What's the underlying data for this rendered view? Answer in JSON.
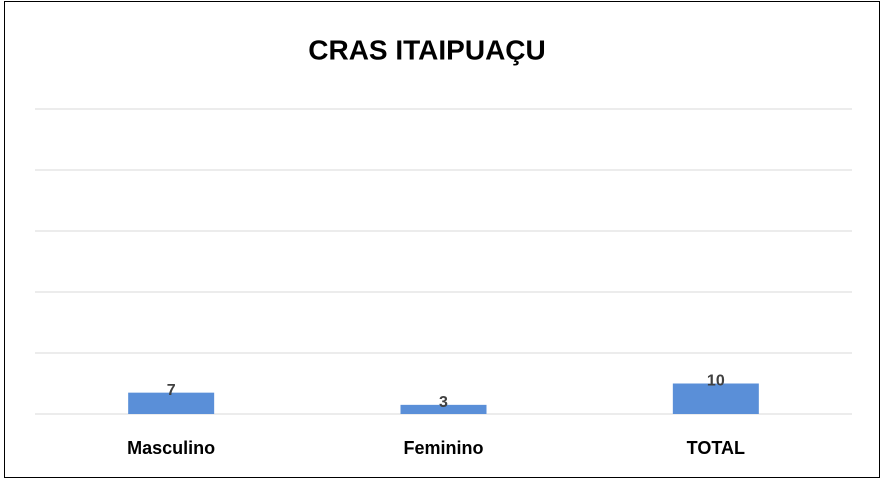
{
  "chart_data": {
    "type": "bar",
    "title": "CRAS ITAIPUAÇU",
    "categories": [
      "Masculino",
      "Feminino",
      "TOTAL"
    ],
    "values": [
      7,
      3,
      10
    ],
    "color": "#5a8fd8",
    "ylim": [
      0,
      100
    ],
    "yticks": [
      0,
      20,
      40,
      60,
      80,
      100
    ],
    "grid": true
  }
}
